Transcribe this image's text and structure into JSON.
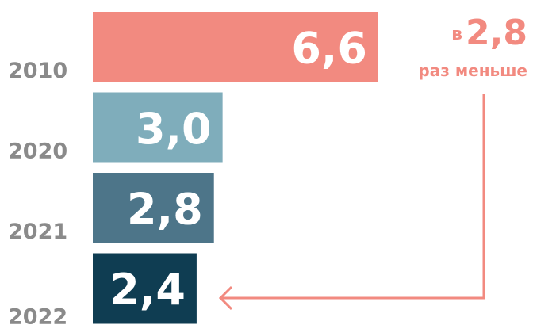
{
  "chart_data": {
    "type": "bar",
    "orientation": "horizontal",
    "categories": [
      "2010",
      "2020",
      "2021",
      "2022"
    ],
    "values": [
      6.6,
      3.0,
      2.8,
      2.4
    ],
    "value_labels": [
      "6,6",
      "3,0",
      "2,8",
      "2,4"
    ],
    "colors": [
      "#f28a80",
      "#7fadbb",
      "#4d7589",
      "#0f3d52"
    ],
    "annotation": {
      "prefix": "в",
      "value": "2,8",
      "suffix": "раз меньше",
      "color": "#f28a80"
    }
  }
}
